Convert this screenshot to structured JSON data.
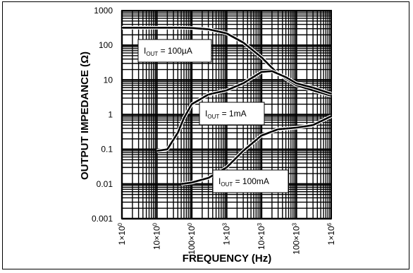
{
  "chart_data": {
    "type": "line",
    "xlabel": "FREQUENCY (Hz)",
    "ylabel": "OUTPUT IMPEDANCE (Ω)",
    "x_scale": "log",
    "y_scale": "log",
    "xlim": [
      1,
      1000000
    ],
    "ylim": [
      0.001,
      1000
    ],
    "grid": true,
    "x_tick_labels": [
      "1×10",
      "10×10",
      "100×10",
      "1×10",
      "10×10",
      "100×10",
      "1×10"
    ],
    "x_tick_exponents": [
      "0",
      "0",
      "0",
      "3",
      "3",
      "3",
      "6"
    ],
    "y_tick_labels": [
      "1000",
      "100",
      "10",
      "1",
      "0.1",
      "0.01",
      "0.001"
    ],
    "series": [
      {
        "callout": {
          "prefix": "I",
          "sub": "OUT",
          "suffix": " = 100µA"
        },
        "x": [
          1,
          10,
          50,
          100,
          300,
          1000,
          3000,
          10000,
          30000,
          100000,
          300000,
          1000000
        ],
        "y": [
          320,
          320,
          320,
          315,
          290,
          220,
          120,
          45,
          15,
          7,
          5,
          3.5
        ]
      },
      {
        "callout": {
          "prefix": "I",
          "sub": "OUT",
          "suffix": " = 1mA"
        },
        "x": [
          10,
          20,
          40,
          60,
          100,
          300,
          1000,
          3000,
          10000,
          20000,
          50000,
          100000,
          300000,
          1000000
        ],
        "y": [
          0.09,
          0.1,
          0.3,
          0.8,
          2,
          3.8,
          5,
          8,
          17,
          18,
          12,
          8,
          6,
          4
        ]
      },
      {
        "callout": {
          "prefix": "I",
          "sub": "OUT",
          "suffix": " = 100mA"
        },
        "x": [
          50,
          100,
          300,
          1000,
          3000,
          10000,
          30000,
          100000,
          300000,
          1000000
        ],
        "y": [
          0.01,
          0.011,
          0.015,
          0.03,
          0.09,
          0.25,
          0.38,
          0.42,
          0.5,
          0.9
        ]
      }
    ]
  }
}
